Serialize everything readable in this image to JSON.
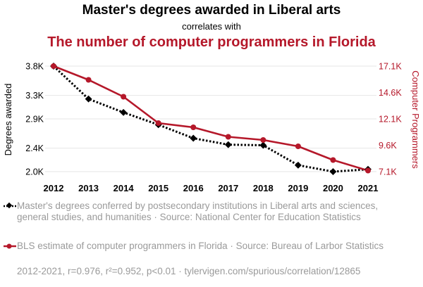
{
  "header": {
    "title": "Master's degrees awarded in Liberal arts",
    "subtitle": "correlates with",
    "title2": "The number of computer programmers in Florida"
  },
  "chart_data": {
    "type": "line",
    "x": [
      2012,
      2013,
      2014,
      2015,
      2016,
      2017,
      2018,
      2019,
      2020,
      2021
    ],
    "series": [
      {
        "name": "Master's degrees conferred by postsecondary institutions in Liberal arts and sciences, general studies, and humanities · Source: National Center for Education Statistics",
        "axis": "left",
        "color": "#000000",
        "style": "dotted",
        "marker": "diamond",
        "values": [
          3800,
          3240,
          3010,
          2800,
          2570,
          2460,
          2450,
          2110,
          2000,
          2040
        ]
      },
      {
        "name": "BLS estimate of computer programmers in Florida · Source: Bureau of Larbor Statistics",
        "axis": "right",
        "color": "#b5182a",
        "style": "solid",
        "marker": "circle",
        "values": [
          17100,
          15800,
          14200,
          11700,
          11300,
          10400,
          10100,
          9500,
          8200,
          7200
        ]
      }
    ],
    "y_left": {
      "label": "Degrees awarded",
      "ticks": [
        2000,
        2400,
        2900,
        3300,
        3800
      ],
      "tick_labels": [
        "2.0K",
        "2.4K",
        "2.9K",
        "3.3K",
        "3.8K"
      ],
      "range": [
        2000,
        3800
      ]
    },
    "y_right": {
      "label": "Computer Programmers",
      "ticks": [
        7100,
        9600,
        12100,
        14600,
        17100
      ],
      "tick_labels": [
        "7.1K",
        "9.6K",
        "12.1K",
        "14.6K",
        "17.1K"
      ],
      "range": [
        7100,
        17100
      ],
      "color": "#b5182a"
    },
    "x_tick_labels": [
      "2012",
      "2013",
      "2014",
      "2015",
      "2016",
      "2017",
      "2018",
      "2019",
      "2020",
      "2021"
    ],
    "grid": "horizontal"
  },
  "legend": {
    "item1": "Master's degrees conferred by postsecondary institutions in Liberal arts and sciences, general studies, and humanities · Source: National Center for Education Statistics",
    "item2": "BLS estimate of computer programmers in Florida · Source: Bureau of Larbor Statistics"
  },
  "footer": "2012-2021, r=0.976, r²=0.952, p<0.01 · tylervigen.com/spurious/correlation/12865"
}
